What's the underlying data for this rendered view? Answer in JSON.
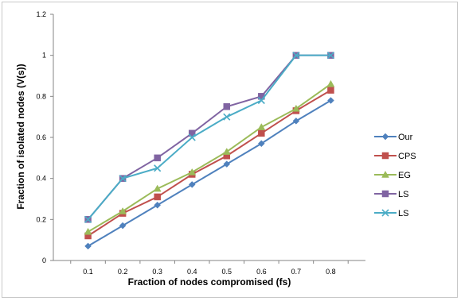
{
  "chart_data": {
    "type": "line",
    "title": "",
    "xlabel": "Fraction of nodes compromised (fs)",
    "ylabel": "Fraction of isolated nodes (V(s))",
    "x": [
      0.1,
      0.2,
      0.3,
      0.4,
      0.5,
      0.6,
      0.7,
      0.8
    ],
    "x_tick_labels": [
      "0.1",
      "0.2",
      "0.3",
      "0.4",
      "0.5",
      "0.6",
      "0.7",
      "0.8"
    ],
    "ylim": [
      0,
      1.2
    ],
    "y_ticks": [
      0,
      0.2,
      0.4,
      0.6,
      0.8,
      1,
      1.2
    ],
    "y_tick_labels": [
      "0",
      "0.2",
      "0.4",
      "0.6",
      "0.8",
      "1",
      "1.2"
    ],
    "grid": false,
    "legend_position": "right",
    "series": [
      {
        "name": "Our",
        "color": "#4f81bd",
        "marker": "diamond",
        "values": [
          0.07,
          0.17,
          0.27,
          0.37,
          0.47,
          0.57,
          0.68,
          0.78
        ]
      },
      {
        "name": "CPS",
        "color": "#c0504d",
        "marker": "square",
        "values": [
          0.12,
          0.23,
          0.31,
          0.42,
          0.51,
          0.62,
          0.73,
          0.83
        ]
      },
      {
        "name": "EG",
        "color": "#9bbb59",
        "marker": "triangle",
        "values": [
          0.14,
          0.24,
          0.35,
          0.43,
          0.53,
          0.65,
          0.74,
          0.86
        ]
      },
      {
        "name": "LS",
        "color": "#8064a2",
        "marker": "square",
        "values": [
          0.2,
          0.4,
          0.5,
          0.62,
          0.75,
          0.8,
          1.0,
          1.0
        ]
      },
      {
        "name": "LS",
        "color": "#4bacc6",
        "marker": "x",
        "values": [
          0.2,
          0.4,
          0.45,
          0.6,
          0.7,
          0.78,
          1.0,
          1.0
        ]
      }
    ]
  }
}
